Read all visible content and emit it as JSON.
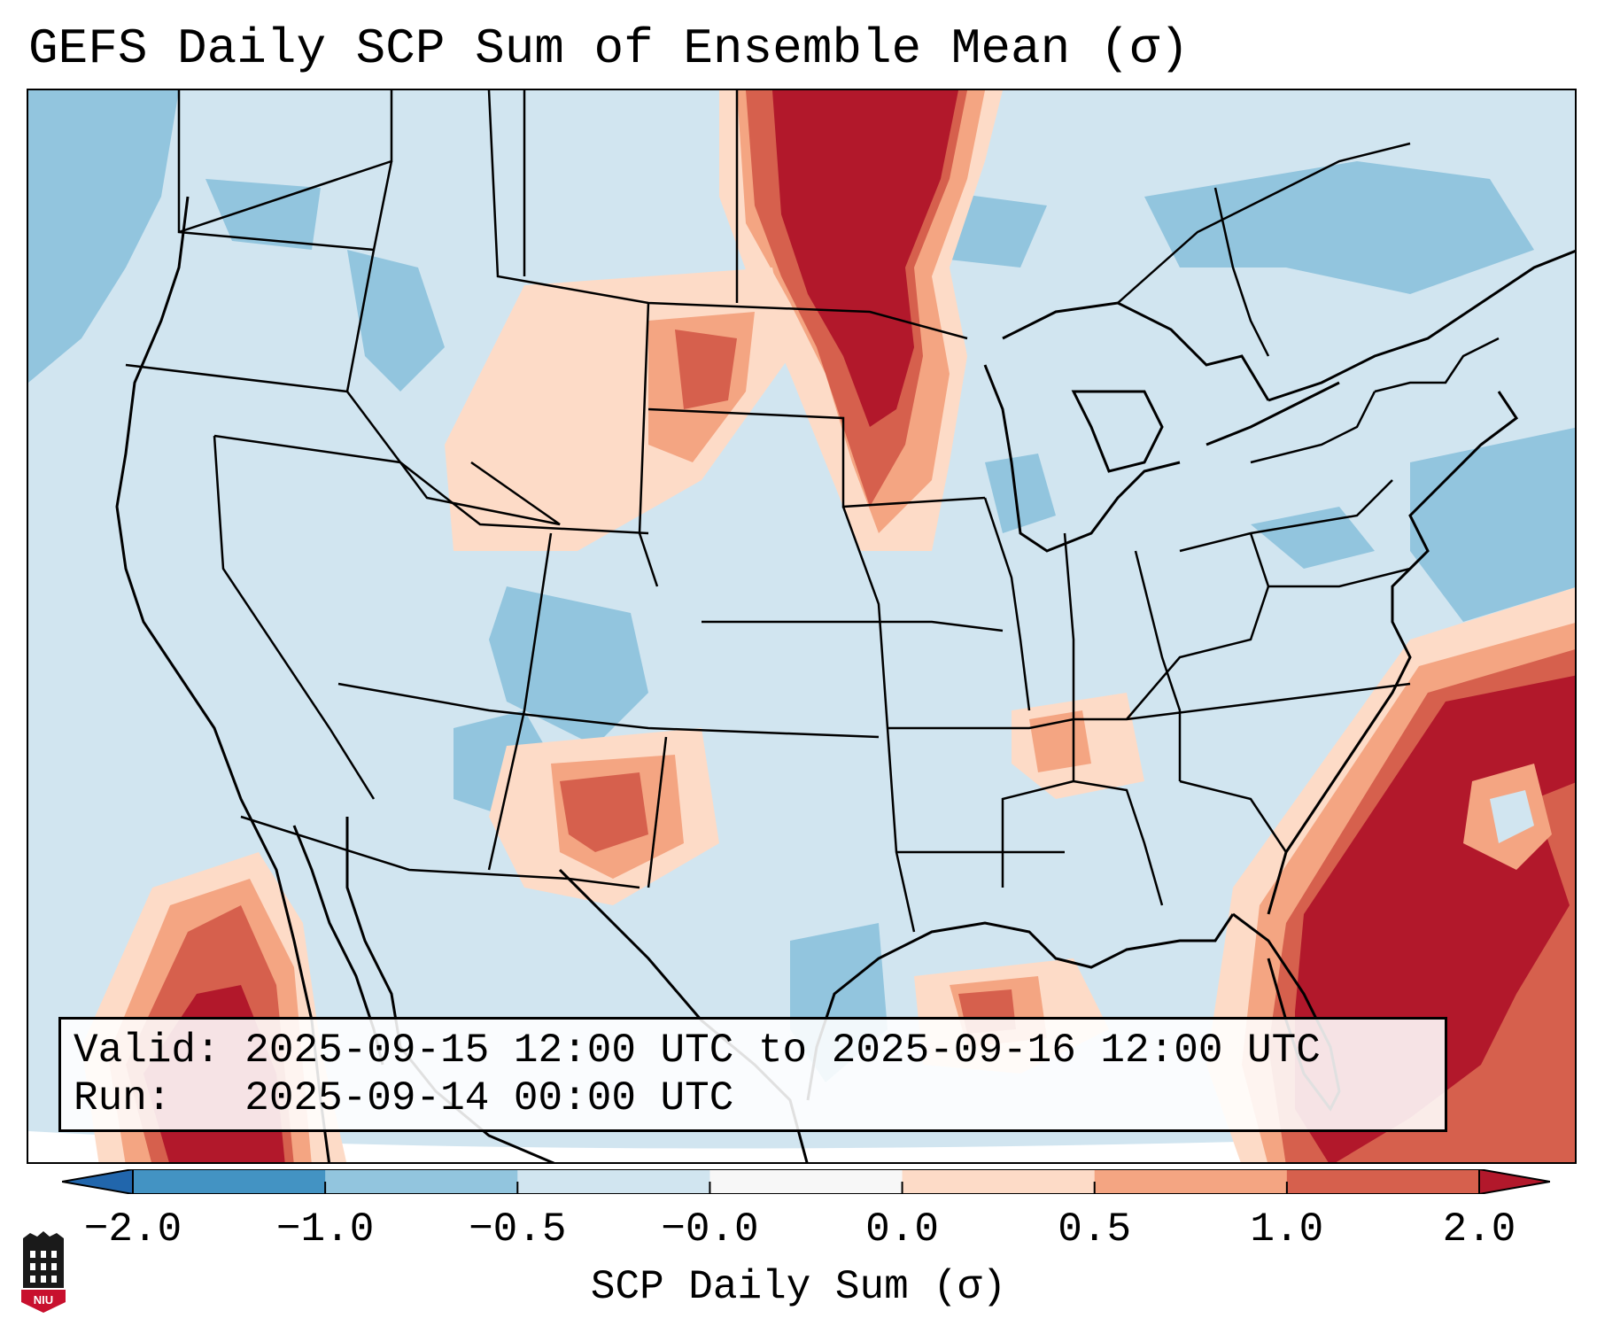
{
  "title": "GEFS Daily SCP Sum of Ensemble Mean (σ)",
  "info": {
    "valid_label": "Valid:",
    "valid_value": "2025-09-15 12:00 UTC to 2025-09-16 12:00 UTC",
    "run_label": "Run:",
    "run_value": "2025-09-14 00:00 UTC"
  },
  "colorbar": {
    "label": "SCP Daily Sum (σ)",
    "ticks": [
      "−2.0",
      "−1.0",
      "−0.5",
      "−0.0",
      "0.0",
      "0.5",
      "1.0",
      "2.0"
    ],
    "bins": [
      {
        "from": -2.0,
        "to": -1.0,
        "color": "#4393c3"
      },
      {
        "from": -1.0,
        "to": -0.5,
        "color": "#92c5de"
      },
      {
        "from": -0.5,
        "to": -0.0,
        "color": "#d1e5f0"
      },
      {
        "from": 0.0,
        "to": 0.0,
        "color": "#f7f7f7"
      },
      {
        "from": 0.0,
        "to": 0.5,
        "color": "#fddbc7"
      },
      {
        "from": 0.5,
        "to": 1.0,
        "color": "#f4a582"
      },
      {
        "from": 1.0,
        "to": 2.0,
        "color": "#d6604d"
      }
    ],
    "extend_low_color": "#2166ac",
    "extend_high_color": "#b2182b"
  },
  "colors": {
    "background_field": "#d1e5f0",
    "light_blue": "#92c5de",
    "light_red": "#fddbc7",
    "mid_red": "#f4a582",
    "strong_red": "#d6604d",
    "dark_red": "#b2182b"
  },
  "logo": {
    "text": "NIU"
  }
}
